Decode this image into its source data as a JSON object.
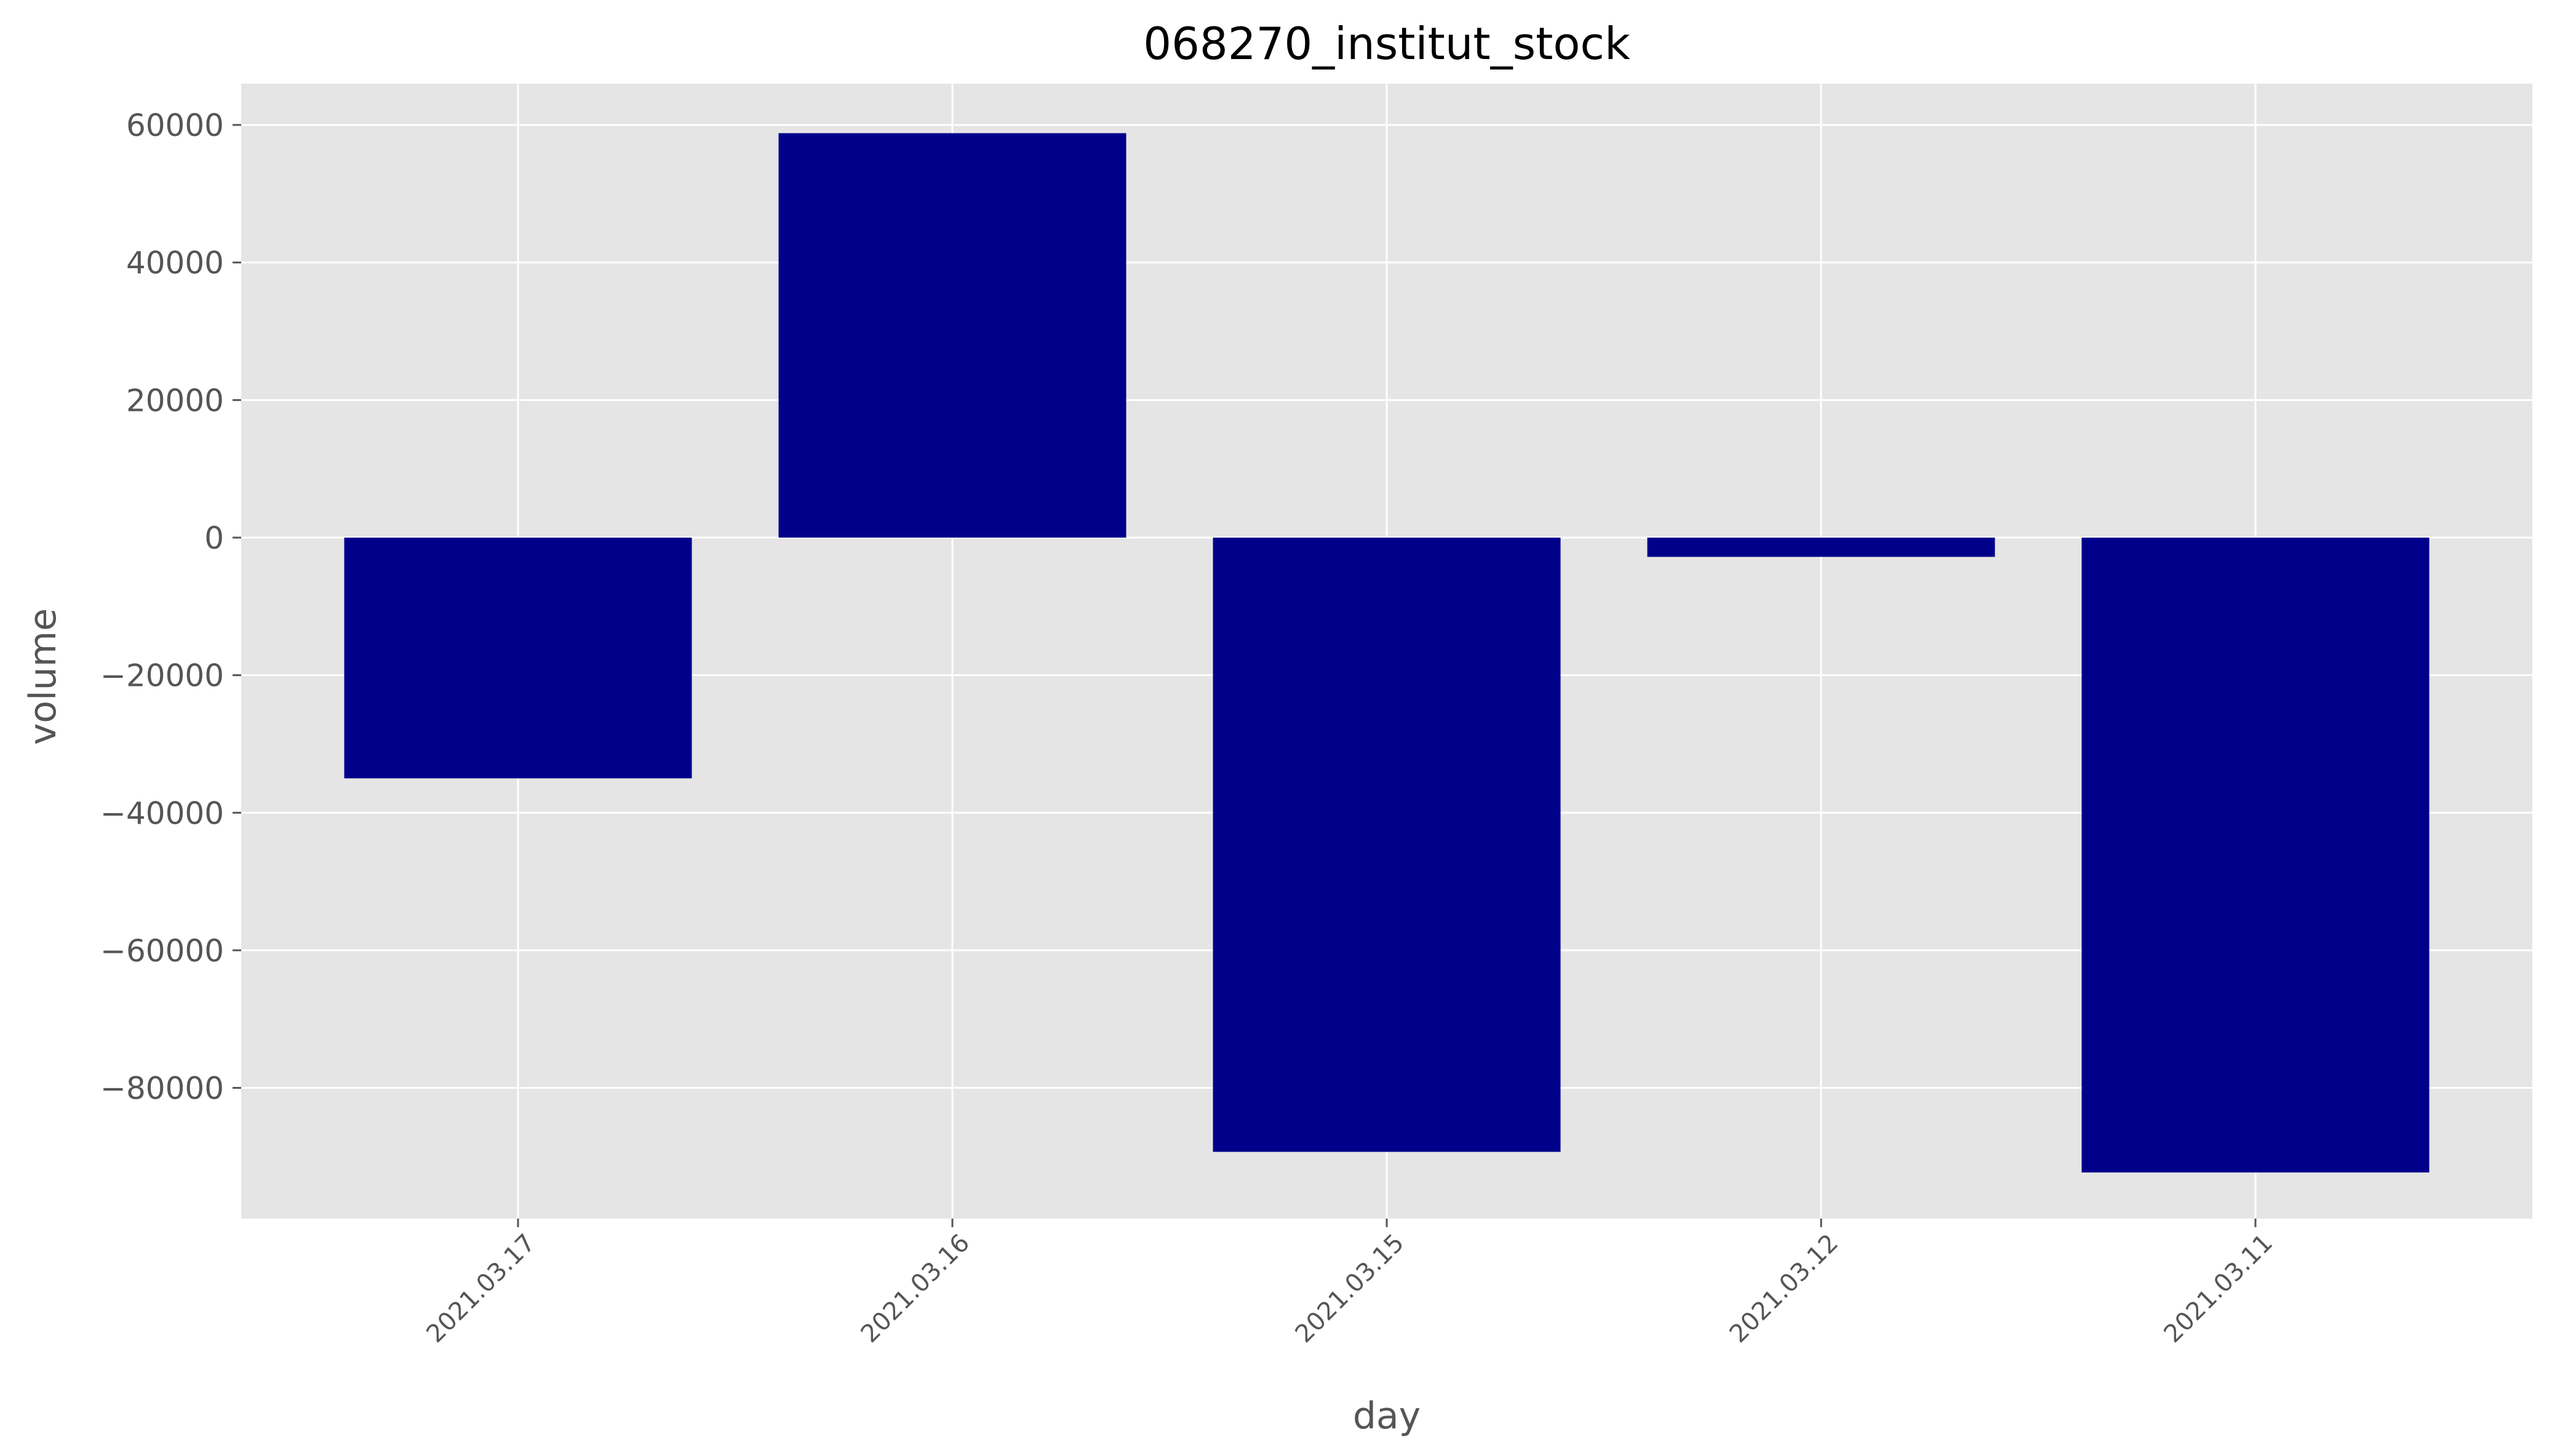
{
  "chart_data": {
    "type": "bar",
    "title": "068270_institut_stock",
    "xlabel": "day",
    "ylabel": "volume",
    "categories": [
      "2021.03.17",
      "2021.03.16",
      "2021.03.15",
      "2021.03.12",
      "2021.03.11"
    ],
    "values": [
      -35000,
      58800,
      -89300,
      -2800,
      -92300
    ],
    "yticks": [
      60000,
      40000,
      20000,
      0,
      -20000,
      -40000,
      -60000,
      -80000
    ],
    "ytick_labels": [
      "60000",
      "40000",
      "20000",
      "0",
      "−20000",
      "−40000",
      "−60000",
      "−80000"
    ],
    "ylim": [
      -99000,
      66000
    ],
    "grid": true,
    "legend": "none",
    "colors": {
      "bar": "#00008b",
      "plot_background": "#e5e5e5",
      "grid": "#ffffff",
      "tick": "#555555",
      "text": "#555555"
    }
  }
}
